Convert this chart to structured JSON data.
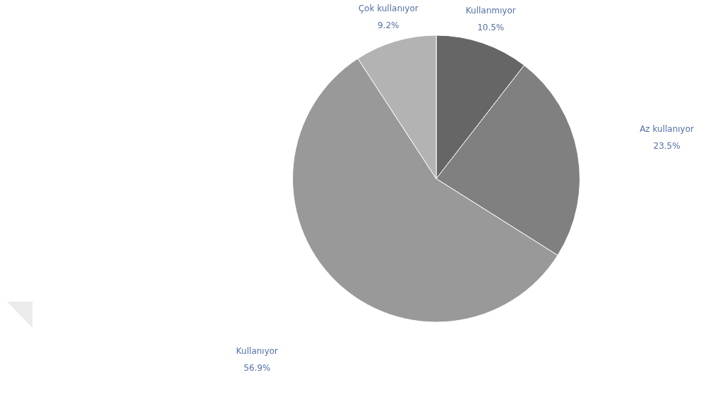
{
  "chart_data": {
    "type": "pie",
    "categories": [
      "Kullanmıyor",
      "Az kullanıyor",
      "Kullanıyor",
      "Çok kullanıyor"
    ],
    "values": [
      10.5,
      23.5,
      56.9,
      9.2
    ],
    "colors": [
      "#666666",
      "#808080",
      "#999999",
      "#b3b3b3"
    ],
    "value_labels": [
      "10.5%",
      "23.5%",
      "56.9%",
      "9.2%"
    ]
  }
}
